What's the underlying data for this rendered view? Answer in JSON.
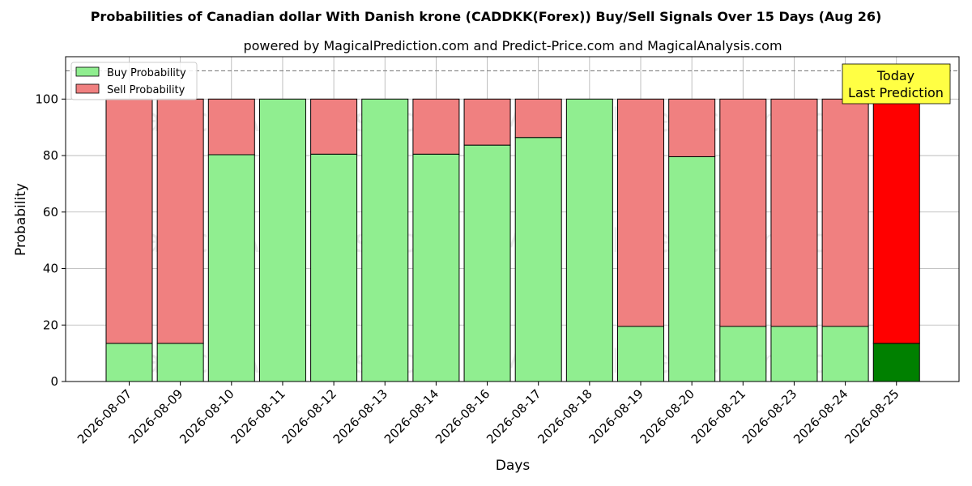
{
  "chart_data": {
    "type": "bar",
    "title": "Probabilities of Canadian dollar With Danish krone (CADDKK(Forex)) Buy/Sell Signals Over 15 Days (Aug 26)",
    "subtitle": "powered by MagicalPrediction.com and Predict-Price.com and MagicalAnalysis.com",
    "xlabel": "Days",
    "ylabel": "Probability",
    "ylim": [
      0,
      115
    ],
    "yticks": [
      0,
      20,
      40,
      60,
      80,
      100
    ],
    "reference_line": 110,
    "grid": true,
    "legend_position": "top-left",
    "categories": [
      "2026-08-07",
      "2026-08-09",
      "2026-08-10",
      "2026-08-11",
      "2026-08-12",
      "2026-08-13",
      "2026-08-14",
      "2026-08-16",
      "2026-08-17",
      "2026-08-18",
      "2026-08-19",
      "2026-08-20",
      "2026-08-21",
      "2026-08-23",
      "2026-08-24",
      "2026-08-25"
    ],
    "series": [
      {
        "name": "Buy Probability",
        "color": "#90ee90",
        "values": [
          13.5,
          13.5,
          80.3,
          100,
          80.5,
          100,
          80.5,
          83.7,
          86.4,
          100,
          19.5,
          79.6,
          19.5,
          19.5,
          19.5,
          13.5
        ]
      },
      {
        "name": "Sell Probability",
        "color": "#f08080",
        "values": [
          86.5,
          86.5,
          19.7,
          0,
          19.5,
          0,
          19.5,
          16.3,
          13.6,
          0,
          80.5,
          20.4,
          80.5,
          80.5,
          80.5,
          86.5
        ]
      }
    ],
    "highlight": {
      "index": 15,
      "buy_color": "#008000",
      "sell_color": "#ff0000"
    },
    "annotation": {
      "lines": [
        "Today",
        "Last Prediction"
      ],
      "color": "#ffff44"
    },
    "watermarks": [
      "MagicalAnalysis.com",
      "MagicalPrediction.com"
    ]
  }
}
